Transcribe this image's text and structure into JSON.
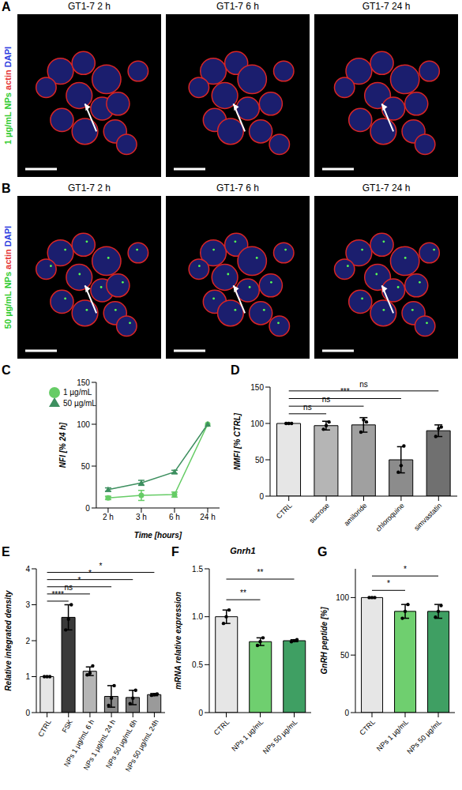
{
  "image_panels": [
    {
      "panel": "A",
      "label": [
        {
          "text": "1 µg/mL NPs",
          "color": "#33cc33"
        },
        {
          "text": "actin",
          "color": "#e53030"
        },
        {
          "text": "DAPI",
          "color": "#3040e0"
        }
      ],
      "titles": [
        "GT1-7 2 h",
        "GT1-7 6 h",
        "GT1-7 24 h"
      ]
    },
    {
      "panel": "B",
      "label": [
        {
          "text": "50 µg/mL NPs",
          "color": "#33cc33"
        },
        {
          "text": "actin",
          "color": "#e53030"
        },
        {
          "text": "DAPI",
          "color": "#3040e0"
        }
      ],
      "titles": [
        "GT1-7 2 h",
        "GT1-7 6 h",
        "GT1-7 24 h"
      ]
    }
  ],
  "chart_data": [
    {
      "panel": "C",
      "type": "line",
      "x_label": "Time [hours]",
      "y_label": "NFI [% 24 h]",
      "categories": [
        "2 h",
        "3 h",
        "6 h",
        "24 h"
      ],
      "series": [
        {
          "name": "1 µg/mL",
          "color": "#66cc66",
          "marker": "circle",
          "values": [
            12,
            15,
            16,
            100
          ],
          "errors": [
            2,
            6,
            3,
            0
          ]
        },
        {
          "name": "50 µg/mL",
          "color": "#3d8f5f",
          "marker": "triangle",
          "values": [
            22,
            30,
            43,
            100
          ],
          "errors": [
            2,
            3,
            2,
            0
          ]
        }
      ],
      "ylim": [
        0,
        150
      ],
      "yticks": [
        0,
        50,
        100,
        150
      ],
      "legend": "top-left"
    },
    {
      "panel": "D",
      "type": "bar",
      "y_label": "NMFI [% CTRL]",
      "categories": [
        "CTRL",
        "sucrose",
        "amiloride",
        "chloroquine",
        "simvastatin"
      ],
      "values": [
        100,
        97,
        98,
        50,
        90
      ],
      "errors": [
        0,
        6,
        10,
        18,
        8
      ],
      "points": [
        [
          100,
          100,
          100
        ],
        [
          92,
          97,
          102
        ],
        [
          88,
          105,
          102
        ],
        [
          33,
          42,
          69
        ],
        [
          82,
          93,
          95
        ]
      ],
      "colors": [
        "#e6e6e6",
        "#b5b5b5",
        "#a0a0a0",
        "#8c8c8c",
        "#707070"
      ],
      "ylim": [
        0,
        150
      ],
      "yticks": [
        0,
        50,
        100,
        150
      ],
      "significance": [
        {
          "from": "CTRL",
          "to": "sucrose",
          "label": "ns"
        },
        {
          "from": "CTRL",
          "to": "amiloride",
          "label": "ns"
        },
        {
          "from": "CTRL",
          "to": "chloroquine",
          "label": "***"
        },
        {
          "from": "CTRL",
          "to": "simvastatin",
          "label": "ns"
        }
      ]
    },
    {
      "panel": "E",
      "type": "bar",
      "y_label": "Relative integrated density",
      "categories": [
        "CTRL",
        "FSK",
        "NPs 1 µg/mL 6 h",
        "NPs 1 µg/mL 24 h",
        "NPs 50 µg/mL 6h",
        "NPs 50 µg/mL 24h"
      ],
      "values": [
        1,
        2.65,
        1.15,
        0.45,
        0.42,
        0.5
      ],
      "errors": [
        0,
        0.35,
        0.12,
        0.3,
        0.2,
        0.03
      ],
      "points": [
        [
          1,
          1,
          1
        ],
        [
          2.3,
          2.6,
          3.0
        ],
        [
          1.05,
          1.1,
          1.3
        ],
        [
          0.2,
          0.4,
          0.75
        ],
        [
          0.25,
          0.4,
          0.62
        ],
        [
          0.48,
          0.5,
          0.52
        ]
      ],
      "colors": [
        "#e6e6e6",
        "#3a3a3a",
        "#b5b5b5",
        "#8c8c8c",
        "#7a7a7a",
        "#9a9a9a"
      ],
      "ylim": [
        0,
        4
      ],
      "yticks": [
        0,
        1,
        2,
        3,
        4
      ],
      "significance": [
        {
          "from": "CTRL",
          "to": "FSK",
          "label": "****"
        },
        {
          "from": "CTRL",
          "to": "NPs 1 µg/mL 6 h",
          "label": "ns"
        },
        {
          "from": "CTRL",
          "to": "NPs 1 µg/mL 24 h",
          "label": "*"
        },
        {
          "from": "CTRL",
          "to": "NPs 50 µg/mL 6h",
          "label": "*"
        },
        {
          "from": "CTRL",
          "to": "NPs 50 µg/mL 24h",
          "label": "*"
        }
      ]
    },
    {
      "panel": "F",
      "type": "bar",
      "title": "Gnrh1",
      "y_label": "mRNA relative expression",
      "categories": [
        "CTRL",
        "NPs 1 µg/mL",
        "NPs 50 µg/mL"
      ],
      "values": [
        1.0,
        0.74,
        0.75
      ],
      "errors": [
        0.07,
        0.04,
        0.01
      ],
      "points": [
        [
          0.93,
          1.0,
          1.07
        ],
        [
          0.7,
          0.74,
          0.78
        ],
        [
          0.74,
          0.75,
          0.76
        ]
      ],
      "colors": [
        "#e6e6e6",
        "#6fcf6f",
        "#3f9f63"
      ],
      "ylim": [
        0,
        1.5
      ],
      "yticks": [
        0,
        0.5,
        {
          "value": 1,
          "label": "1.0"
        },
        1.5
      ],
      "significance": [
        {
          "from": "CTRL",
          "to": "NPs 1 µg/mL",
          "label": "**"
        },
        {
          "from": "CTRL",
          "to": "NPs 50 µg/mL",
          "label": "**"
        }
      ]
    },
    {
      "panel": "G",
      "type": "bar",
      "y_label": "GnRH peptide [%]",
      "categories": [
        "CTRL",
        "NPs 1 µg/mL",
        "NPs 50 µg/mL"
      ],
      "values": [
        100,
        88,
        88
      ],
      "errors": [
        0,
        6,
        6
      ],
      "points": [
        [
          100,
          100,
          100
        ],
        [
          82,
          88,
          94
        ],
        [
          83,
          88,
          93
        ]
      ],
      "colors": [
        "#e6e6e6",
        "#6fcf6f",
        "#3f9f63"
      ],
      "ylim": [
        0,
        125
      ],
      "yticks": [
        0,
        50,
        100
      ],
      "significance": [
        {
          "from": "CTRL",
          "to": "NPs 1 µg/mL",
          "label": "*"
        },
        {
          "from": "CTRL",
          "to": "NPs 50 µg/mL",
          "label": "*"
        }
      ]
    }
  ]
}
